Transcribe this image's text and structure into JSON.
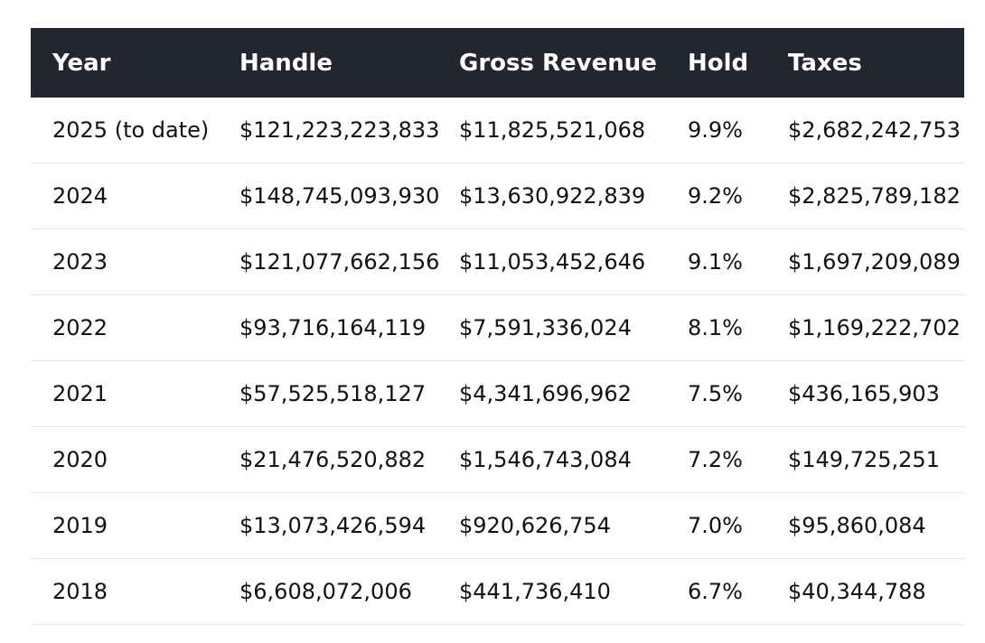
{
  "table": {
    "header": [
      "Year",
      "Handle",
      "Gross Revenue",
      "Hold",
      "Taxes"
    ],
    "rows": [
      [
        "2025 (to date)",
        "$121,223,223,833",
        "$11,825,521,068",
        "9.9%",
        "$2,682,242,753"
      ],
      [
        "2024",
        "$148,745,093,930",
        "$13,630,922,839",
        "9.2%",
        "$2,825,789,182"
      ],
      [
        "2023",
        "$121,077,662,156",
        "$11,053,452,646",
        "9.1%",
        "$1,697,209,089"
      ],
      [
        "2022",
        "$93,716,164,119",
        "$7,591,336,024",
        "8.1%",
        "$1,169,222,702"
      ],
      [
        "2021",
        "$57,525,518,127",
        "$4,341,696,962",
        "7.5%",
        "$436,165,903"
      ],
      [
        "2020",
        "$21,476,520,882",
        "$1,546,743,084",
        "7.2%",
        "$149,725,251"
      ],
      [
        "2019",
        "$13,073,426,594",
        "$920,626,754",
        "7.0%",
        "$95,860,084"
      ],
      [
        "2018",
        "$6,608,072,006",
        "$441,736,410",
        "6.7%",
        "$40,344,788"
      ]
    ]
  }
}
